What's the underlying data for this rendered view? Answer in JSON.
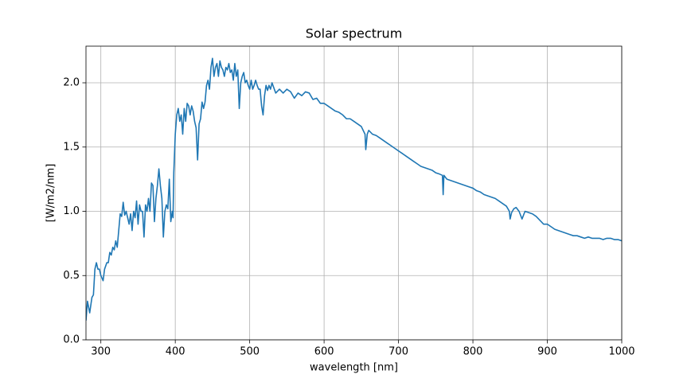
{
  "chart_data": {
    "type": "line",
    "title": "Solar spectrum",
    "xlabel": "wavelength [nm]",
    "ylabel": "[W/m2/nm]",
    "x": [
      280,
      282,
      285,
      288,
      290,
      292,
      294,
      296,
      298,
      300,
      303,
      305,
      308,
      310,
      312,
      314,
      316,
      318,
      320,
      322,
      324,
      326,
      328,
      330,
      332,
      334,
      336,
      338,
      340,
      342,
      344,
      346,
      348,
      350,
      352,
      354,
      356,
      358,
      360,
      362,
      364,
      366,
      368,
      370,
      372,
      374,
      376,
      378,
      380,
      382,
      384,
      386,
      388,
      390,
      392,
      394,
      396,
      397,
      398,
      400,
      402,
      404,
      406,
      408,
      410,
      412,
      414,
      416,
      418,
      420,
      422,
      424,
      426,
      428,
      430,
      432,
      434,
      436,
      438,
      440,
      442,
      444,
      446,
      448,
      450,
      452,
      454,
      456,
      458,
      460,
      462,
      464,
      466,
      468,
      470,
      472,
      474,
      476,
      478,
      480,
      482,
      484,
      486,
      488,
      490,
      492,
      494,
      496,
      498,
      500,
      502,
      504,
      506,
      508,
      510,
      512,
      514,
      516,
      518,
      520,
      522,
      524,
      526,
      528,
      530,
      535,
      540,
      545,
      550,
      555,
      560,
      565,
      570,
      575,
      580,
      585,
      590,
      595,
      600,
      605,
      610,
      615,
      620,
      625,
      630,
      635,
      640,
      645,
      650,
      655,
      656,
      658,
      660,
      665,
      670,
      675,
      680,
      685,
      690,
      695,
      700,
      705,
      710,
      715,
      720,
      725,
      730,
      735,
      740,
      745,
      750,
      755,
      759,
      760,
      761,
      765,
      770,
      775,
      780,
      785,
      790,
      795,
      800,
      805,
      810,
      815,
      820,
      825,
      830,
      835,
      840,
      845,
      849,
      850,
      852,
      855,
      858,
      862,
      866,
      870,
      875,
      880,
      885,
      890,
      895,
      900,
      905,
      910,
      915,
      920,
      925,
      930,
      935,
      940,
      945,
      950,
      955,
      960,
      965,
      970,
      975,
      980,
      985,
      990,
      995,
      1000
    ],
    "series": [
      {
        "color": "#1f77b4",
        "values": [
          0.15,
          0.3,
          0.21,
          0.33,
          0.35,
          0.55,
          0.6,
          0.55,
          0.55,
          0.5,
          0.46,
          0.55,
          0.6,
          0.6,
          0.68,
          0.66,
          0.72,
          0.7,
          0.77,
          0.72,
          0.85,
          0.98,
          0.96,
          1.07,
          0.97,
          1.0,
          0.95,
          0.9,
          0.98,
          0.85,
          1.0,
          0.95,
          1.08,
          0.9,
          1.05,
          1.0,
          1.0,
          0.8,
          1.05,
          1.0,
          1.1,
          1.0,
          1.22,
          1.2,
          0.92,
          1.1,
          1.2,
          1.33,
          1.2,
          1.1,
          0.8,
          1.0,
          1.05,
          1.02,
          1.25,
          0.92,
          1.0,
          0.95,
          1.3,
          1.6,
          1.75,
          1.8,
          1.7,
          1.75,
          1.6,
          1.8,
          1.7,
          1.84,
          1.82,
          1.75,
          1.82,
          1.78,
          1.7,
          1.65,
          1.4,
          1.68,
          1.72,
          1.85,
          1.8,
          1.85,
          1.98,
          2.02,
          1.95,
          2.12,
          2.19,
          2.05,
          2.12,
          2.15,
          2.05,
          2.17,
          2.12,
          2.1,
          2.05,
          2.12,
          2.1,
          2.15,
          2.08,
          2.1,
          2.02,
          2.15,
          2.05,
          2.1,
          1.8,
          2.0,
          2.05,
          2.08,
          2.0,
          2.02,
          1.98,
          1.95,
          2.02,
          1.95,
          1.98,
          2.02,
          1.98,
          1.95,
          1.95,
          1.82,
          1.75,
          1.9,
          1.98,
          1.94,
          1.98,
          1.95,
          2.0,
          1.92,
          1.95,
          1.92,
          1.95,
          1.93,
          1.88,
          1.92,
          1.9,
          1.93,
          1.92,
          1.87,
          1.88,
          1.84,
          1.84,
          1.82,
          1.8,
          1.78,
          1.77,
          1.75,
          1.72,
          1.72,
          1.7,
          1.68,
          1.66,
          1.6,
          1.48,
          1.6,
          1.63,
          1.6,
          1.59,
          1.57,
          1.55,
          1.53,
          1.51,
          1.49,
          1.47,
          1.45,
          1.43,
          1.41,
          1.39,
          1.37,
          1.35,
          1.34,
          1.33,
          1.32,
          1.3,
          1.29,
          1.28,
          1.13,
          1.28,
          1.25,
          1.24,
          1.23,
          1.22,
          1.21,
          1.2,
          1.19,
          1.18,
          1.16,
          1.15,
          1.13,
          1.12,
          1.11,
          1.1,
          1.08,
          1.06,
          1.04,
          1.0,
          0.94,
          0.99,
          1.02,
          1.03,
          1.0,
          0.94,
          1.0,
          0.99,
          0.98,
          0.96,
          0.93,
          0.9,
          0.9,
          0.88,
          0.86,
          0.85,
          0.84,
          0.83,
          0.82,
          0.81,
          0.81,
          0.8,
          0.79,
          0.8,
          0.79,
          0.79,
          0.79,
          0.78,
          0.79,
          0.79,
          0.78,
          0.78,
          0.77
        ]
      }
    ],
    "xlim": [
      280,
      1000
    ],
    "xticks": [
      300,
      400,
      500,
      600,
      700,
      800,
      900,
      1000
    ],
    "ylim": [
      0,
      2.285
    ],
    "yticks": [
      {
        "value": 0,
        "label": "0.0"
      },
      0.5,
      {
        "value": 1,
        "label": "1.0"
      },
      1.5,
      {
        "value": 2,
        "label": "2.0"
      }
    ],
    "grid": true
  }
}
